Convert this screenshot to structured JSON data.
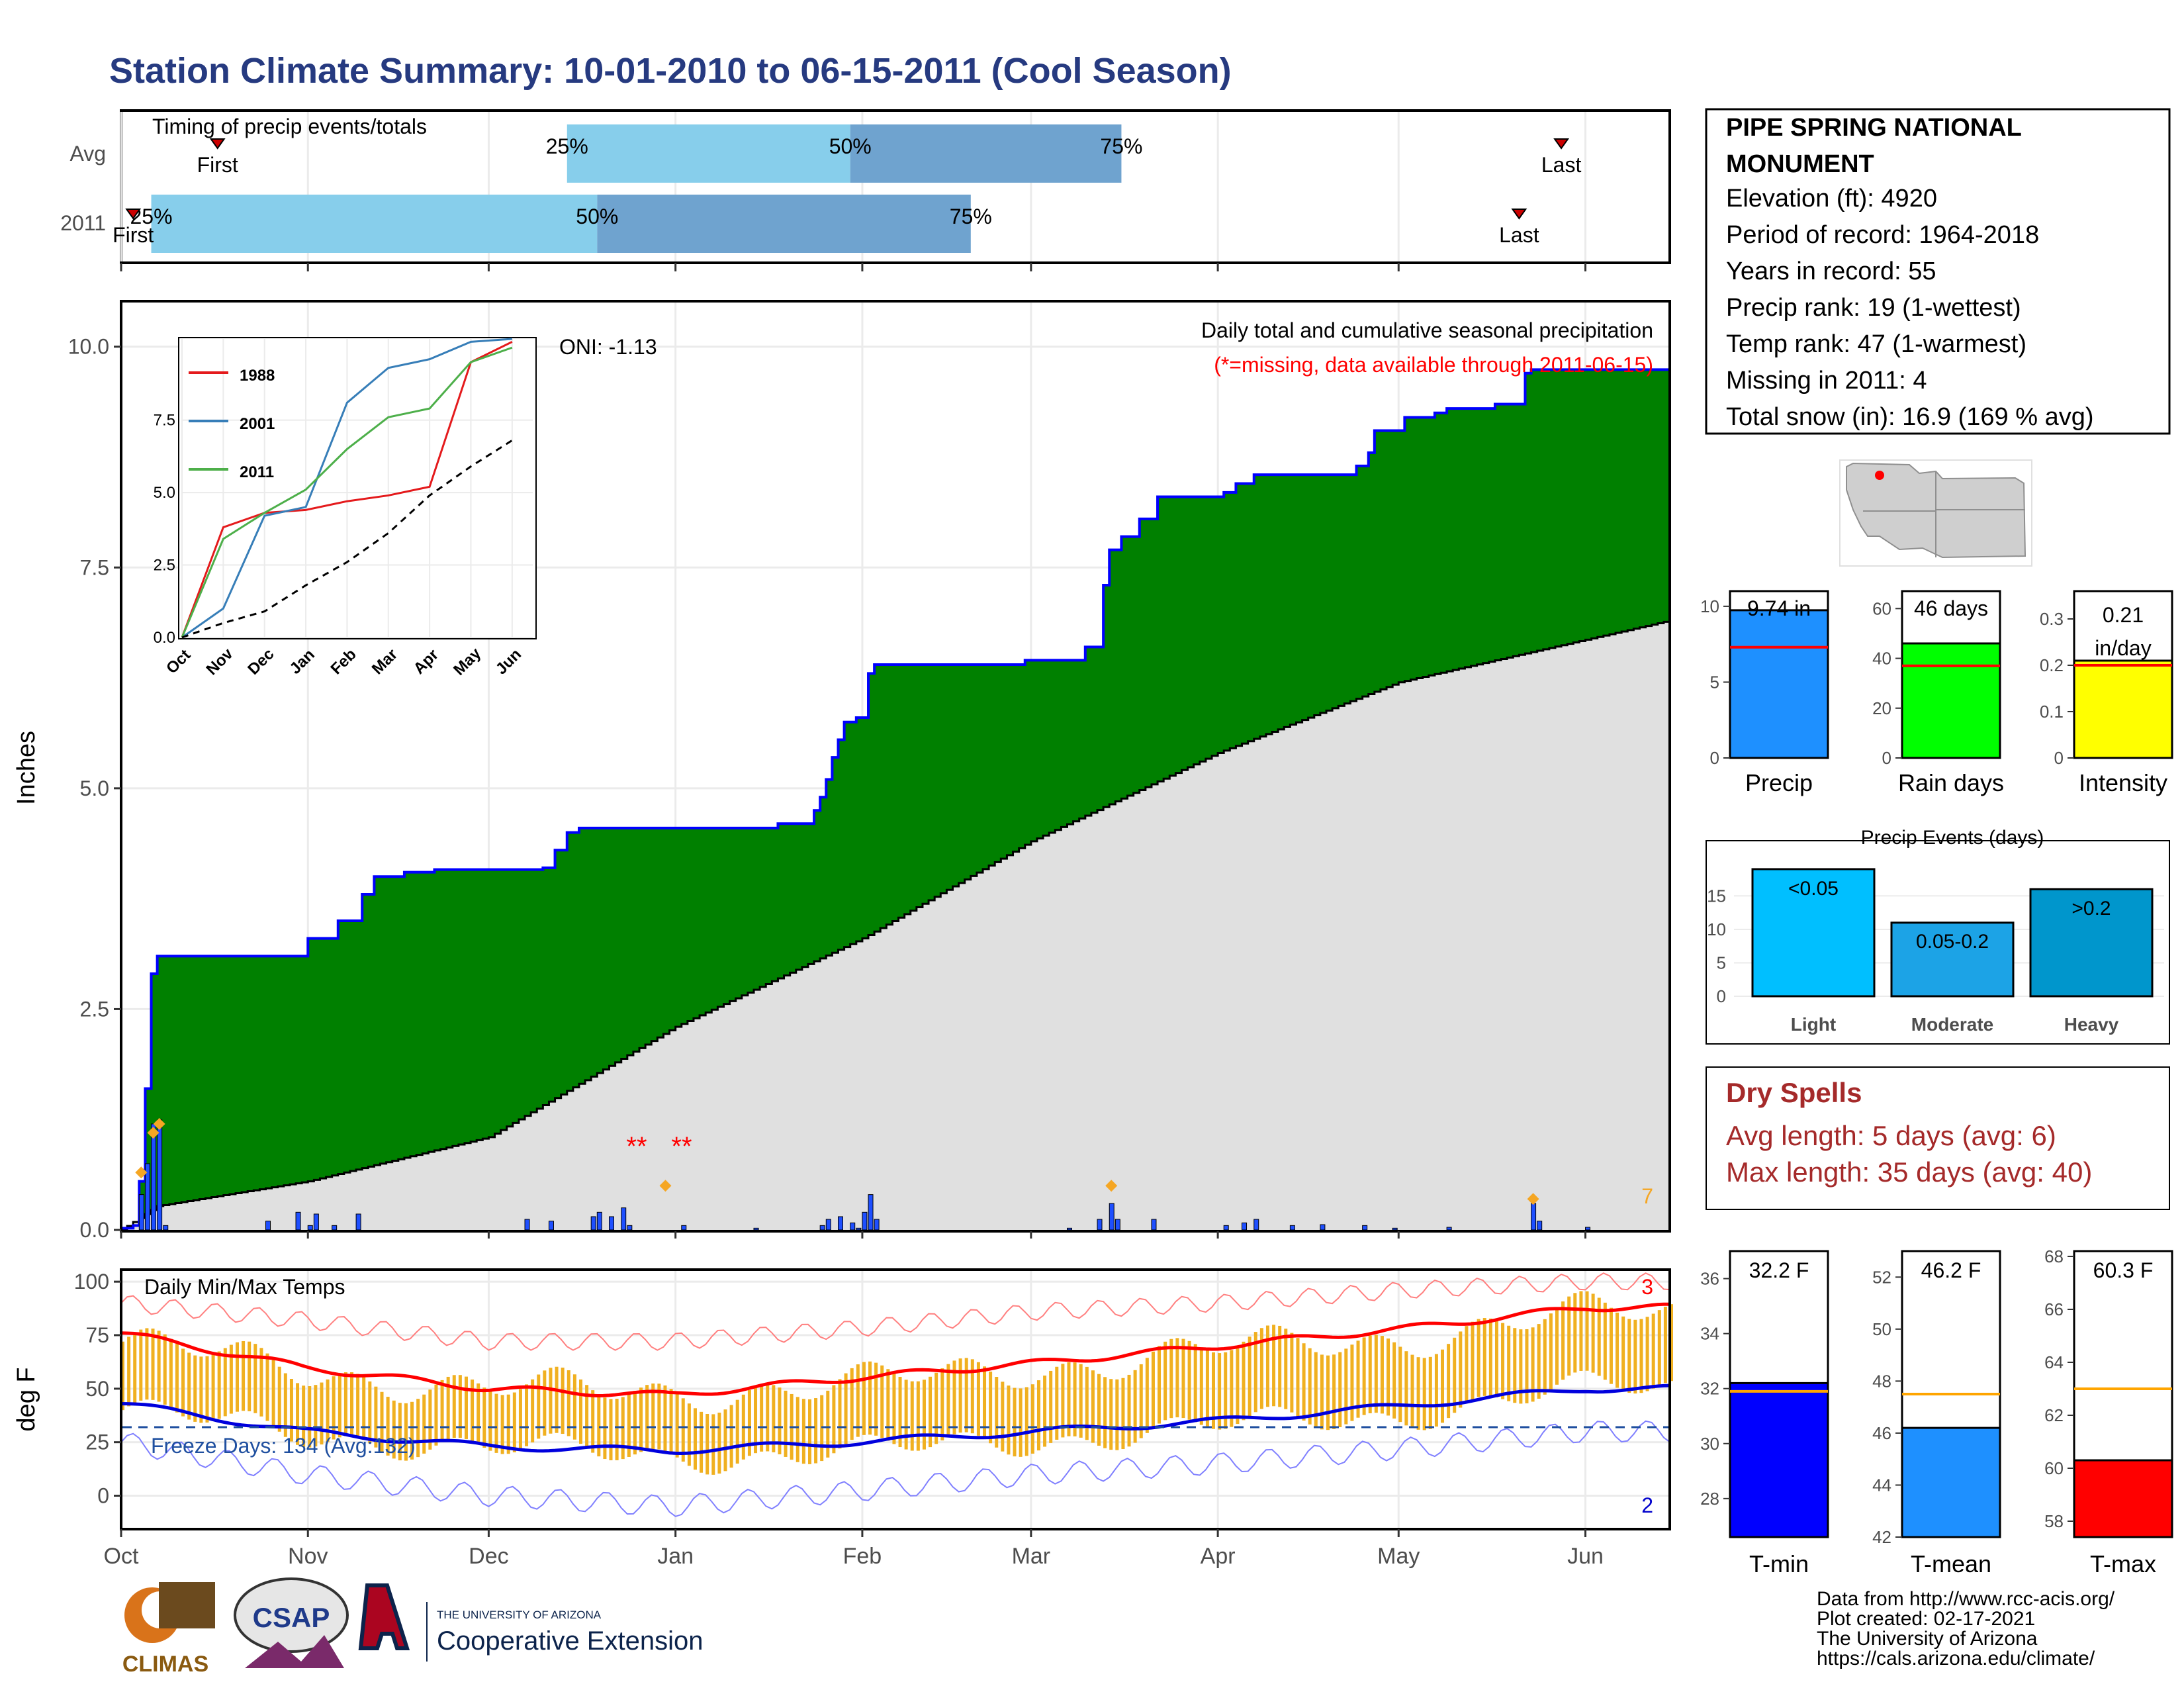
{
  "title": "Station Climate Summary: 10-01-2010 to 06-15-2011 (Cool Season)",
  "timing": {
    "label": "Timing of precip events/totals",
    "rows": [
      {
        "name": "Avg",
        "p25_date": "2010-12-14",
        "p50_date": "2011-01-30",
        "p75_date": "2011-03-16",
        "first_date": "2010-10-17",
        "last_date": "2011-05-28",
        "first_label": "First",
        "last_label": "Last"
      },
      {
        "name": "2011",
        "p25_date": "2010-10-06",
        "p50_date": "2010-12-19",
        "p75_date": "2011-02-19",
        "first_date": "2010-10-03",
        "last_date": "2011-05-21",
        "first_label": "First",
        "last_label": "Last"
      }
    ],
    "pct_labels": [
      "25%",
      "50%",
      "75%"
    ]
  },
  "station": {
    "name_line1": "PIPE SPRING NATIONAL",
    "name_line2": "MONUMENT",
    "elevation": "Elevation (ft): 4920",
    "period": "Period of record: 1964-2018",
    "years": "Years in record: 55",
    "precip_rank": "Precip rank: 19 (1-wettest)",
    "temp_rank": "Temp rank: 47 (1-warmest)",
    "missing": "Missing in 2011: 4",
    "snow": "Total snow (in): 16.9 (169 % avg)"
  },
  "precip_panel": {
    "title": "Daily total and cumulative seasonal precipitation",
    "missing_note": "(*=missing, data available through 2011-06-15)",
    "oni": "ONI: -1.13",
    "ylabel": "Inches",
    "count_label": "7",
    "missing_markers": "**"
  },
  "inset": {
    "legend": [
      "1988",
      "2001",
      "2011"
    ],
    "colors": [
      "#e41a1c",
      "#377eb8",
      "#4daf4a"
    ],
    "months": [
      "Oct",
      "Nov",
      "Dec",
      "Jan",
      "Feb",
      "Mar",
      "Apr",
      "May",
      "Jun"
    ],
    "yticks": [
      "0.0",
      "2.5",
      "5.0",
      "7.5"
    ]
  },
  "temp_panel": {
    "title": "Daily Min/Max Temps",
    "freeze": "Freeze Days: 134 (Avg:132)",
    "ylabel": "deg F",
    "count_high": "3",
    "count_low": "2",
    "yticks": [
      "0",
      "25",
      "50",
      "75",
      "100"
    ]
  },
  "x_months": [
    "Oct",
    "Nov",
    "Dec",
    "Jan",
    "Feb",
    "Mar",
    "Apr",
    "May",
    "Jun"
  ],
  "totals": [
    {
      "label": "Precip",
      "value_label": "9.74 in",
      "color": "#1e90ff"
    },
    {
      "label": "Rain days",
      "value_label": "46 days",
      "color": "#00ff00"
    },
    {
      "label": "Intensity",
      "value_label_line1": "0.21",
      "value_label_line2": "in/day",
      "color": "#ffff00"
    }
  ],
  "events": {
    "title": "Precip Events (days)",
    "categories": [
      "Light",
      "Moderate",
      "Heavy"
    ],
    "bar_labels": [
      "<0.05",
      "0.05-0.2",
      ">0.2"
    ],
    "colors": [
      "#00bfff",
      "#1ca3e6",
      "#0096cc"
    ]
  },
  "dry_spells": {
    "title": "Dry Spells",
    "avg": "Avg length: 5 days (avg: 6)",
    "max": "Max length: 35 days (avg: 40)"
  },
  "temp_bars": [
    {
      "label": "T-min",
      "value_label": "32.2 F",
      "color": "#0000ff"
    },
    {
      "label": "T-mean",
      "value_label": "46.2 F",
      "color": "#1e90ff"
    },
    {
      "label": "T-max",
      "value_label": "60.3 F",
      "color": "#ff0000"
    }
  ],
  "footer": {
    "line1": "Data from http://www.rcc-acis.org/",
    "line2": "Plot created: 02-17-2021",
    "line3": "The University of Arizona",
    "line4": "https://cals.arizona.edu/climate/",
    "logo1": "CLIMAS",
    "logo2": "CSAP",
    "logo3_small": "THE UNIVERSITY OF ARIZONA",
    "logo3_big": "Cooperative Extension"
  },
  "chart_data": [
    {
      "type": "area",
      "title": "Daily total and cumulative seasonal precipitation",
      "ylabel": "Inches",
      "ylim": [
        0,
        10.5
      ],
      "yticks": [
        0,
        2.5,
        5.0,
        7.5,
        10.0
      ],
      "x_start": "2010-10-01",
      "x_end": "2011-06-15",
      "series": [
        {
          "name": "2011",
          "cumulative_steps": [
            [
              "2010-10-01",
              0.02
            ],
            [
              "2010-10-03",
              0.05
            ],
            [
              "2010-10-04",
              0.55
            ],
            [
              "2010-10-05",
              1.6
            ],
            [
              "2010-10-06",
              2.9
            ],
            [
              "2010-10-07",
              3.1
            ],
            [
              "2010-11-01",
              3.3
            ],
            [
              "2010-11-06",
              3.5
            ],
            [
              "2010-11-10",
              3.8
            ],
            [
              "2010-11-12",
              4.0
            ],
            [
              "2010-11-17",
              4.05
            ],
            [
              "2010-11-22",
              4.08
            ],
            [
              "2010-12-10",
              4.1
            ],
            [
              "2010-12-12",
              4.3
            ],
            [
              "2010-12-14",
              4.5
            ],
            [
              "2010-12-16",
              4.55
            ],
            [
              "2011-01-18",
              4.6
            ],
            [
              "2011-01-24",
              4.75
            ],
            [
              "2011-01-25",
              4.9
            ],
            [
              "2011-01-26",
              5.1
            ],
            [
              "2011-01-27",
              5.35
            ],
            [
              "2011-01-28",
              5.55
            ],
            [
              "2011-01-29",
              5.75
            ],
            [
              "2011-01-31",
              5.8
            ],
            [
              "2011-02-02",
              6.3
            ],
            [
              "2011-02-03",
              6.4
            ],
            [
              "2011-02-28",
              6.45
            ],
            [
              "2011-03-10",
              6.6
            ],
            [
              "2011-03-13",
              7.3
            ],
            [
              "2011-03-14",
              7.7
            ],
            [
              "2011-03-16",
              7.85
            ],
            [
              "2011-03-19",
              8.05
            ],
            [
              "2011-03-22",
              8.3
            ],
            [
              "2011-04-02",
              8.35
            ],
            [
              "2011-04-04",
              8.45
            ],
            [
              "2011-04-07",
              8.55
            ],
            [
              "2011-04-24",
              8.65
            ],
            [
              "2011-04-26",
              8.8
            ],
            [
              "2011-04-27",
              9.05
            ],
            [
              "2011-05-02",
              9.2
            ],
            [
              "2011-05-07",
              9.25
            ],
            [
              "2011-05-09",
              9.3
            ],
            [
              "2011-05-17",
              9.35
            ],
            [
              "2011-05-22",
              9.7
            ],
            [
              "2011-05-23",
              9.74
            ],
            [
              "2011-06-15",
              9.74
            ]
          ]
        },
        {
          "name": "Avg cumulative",
          "values_monthly": {
            "2010-10-01": 0.0,
            "2010-10-07": 0.27,
            "2010-11-01": 0.55,
            "2010-12-01": 1.05,
            "2011-01-01": 2.3,
            "2011-02-01": 3.3,
            "2011-03-01": 4.4,
            "2011-04-01": 5.4,
            "2011-05-01": 6.2,
            "2011-06-15": 6.9
          }
        }
      ],
      "daily_bars": [
        [
          "2010-10-04",
          0.4
        ],
        [
          "2010-10-05",
          0.75
        ],
        [
          "2010-10-06",
          1.2
        ],
        [
          "2010-10-07",
          1.25
        ],
        [
          "2010-10-08",
          0.05
        ],
        [
          "2010-10-25",
          0.1
        ],
        [
          "2010-10-30",
          0.2
        ],
        [
          "2010-11-01",
          0.05
        ],
        [
          "2010-11-02",
          0.18
        ],
        [
          "2010-11-05",
          0.05
        ],
        [
          "2010-11-09",
          0.18
        ],
        [
          "2010-12-07",
          0.12
        ],
        [
          "2010-12-11",
          0.1
        ],
        [
          "2010-12-18",
          0.15
        ],
        [
          "2010-12-19",
          0.2
        ],
        [
          "2010-12-21",
          0.15
        ],
        [
          "2010-12-23",
          0.25
        ],
        [
          "2010-12-24",
          0.05
        ],
        [
          "2011-01-02",
          0.05
        ],
        [
          "2011-01-14",
          0.02
        ],
        [
          "2011-01-25",
          0.05
        ],
        [
          "2011-01-26",
          0.12
        ],
        [
          "2011-01-28",
          0.15
        ],
        [
          "2011-01-30",
          0.08
        ],
        [
          "2011-01-31",
          0.02
        ],
        [
          "2011-02-01",
          0.2
        ],
        [
          "2011-02-02",
          0.4
        ],
        [
          "2011-02-03",
          0.12
        ],
        [
          "2011-03-07",
          0.02
        ],
        [
          "2011-03-12",
          0.12
        ],
        [
          "2011-03-14",
          0.3
        ],
        [
          "2011-03-15",
          0.12
        ],
        [
          "2011-03-21",
          0.12
        ],
        [
          "2011-04-02",
          0.05
        ],
        [
          "2011-04-05",
          0.08
        ],
        [
          "2011-04-07",
          0.12
        ],
        [
          "2011-04-13",
          0.05
        ],
        [
          "2011-04-18",
          0.06
        ],
        [
          "2011-04-25",
          0.05
        ],
        [
          "2011-04-30",
          0.02
        ],
        [
          "2011-05-09",
          0.03
        ],
        [
          "2011-05-23",
          0.3
        ],
        [
          "2011-05-24",
          0.1
        ],
        [
          "2011-06-01",
          0.03
        ]
      ],
      "missing_dates": [
        "2010-12-24",
        "2010-12-25",
        "2010-12-31",
        "2011-01-01"
      ]
    },
    {
      "type": "line",
      "title": "",
      "x": [
        "Oct",
        "Nov",
        "Dec",
        "Jan",
        "Feb",
        "Mar",
        "Apr",
        "May",
        "Jun"
      ],
      "ylim": [
        0,
        10.3
      ],
      "yticks": [
        0.0,
        2.5,
        5.0,
        7.5
      ],
      "series": [
        {
          "name": "1988",
          "values": [
            0.0,
            3.8,
            4.3,
            4.4,
            4.7,
            4.9,
            5.2,
            9.5,
            10.2
          ]
        },
        {
          "name": "2001",
          "values": [
            0.0,
            1.0,
            4.2,
            4.5,
            8.1,
            9.3,
            9.6,
            10.2,
            10.3
          ]
        },
        {
          "name": "2011",
          "values": [
            0.0,
            3.4,
            4.3,
            5.1,
            6.5,
            7.6,
            7.9,
            9.5,
            10.0
          ]
        },
        {
          "name": "",
          "values": [
            0.0,
            0.5,
            0.9,
            1.8,
            2.6,
            3.6,
            4.9,
            5.9,
            6.8
          ]
        }
      ]
    },
    {
      "type": "bar",
      "title": "Daily Min/Max Temps",
      "ylabel": "deg F",
      "ylim": [
        -15,
        105
      ],
      "yticks": [
        0,
        25,
        50,
        75,
        100
      ],
      "freeze_line": 32,
      "monthly": {
        "months": [
          "Oct",
          "Nov",
          "Dec",
          "Jan",
          "Feb",
          "Mar",
          "Apr",
          "May",
          "Jun"
        ],
        "tmax": [
          72,
          58,
          50,
          48,
          52,
          60,
          68,
          74,
          85
        ],
        "tmin": [
          40,
          28,
          22,
          18,
          20,
          26,
          32,
          38,
          50
        ],
        "avg_max": [
          76,
          60,
          50,
          47,
          55,
          62,
          70,
          78,
          88
        ],
        "avg_min": [
          43,
          30,
          23,
          21,
          25,
          30,
          35,
          42,
          50
        ],
        "record_high": [
          90,
          82,
          72,
          72,
          78,
          86,
          90,
          96,
          100
        ],
        "record_low": [
          25,
          10,
          0,
          -5,
          2,
          10,
          15,
          22,
          30
        ]
      }
    },
    {
      "type": "bar",
      "title": "",
      "categories": [
        "Precip",
        "Rain days",
        "Intensity"
      ],
      "values": [
        9.74,
        46,
        0.21
      ],
      "avg_values": [
        7.3,
        37,
        0.2
      ],
      "ylims": [
        [
          0,
          11
        ],
        [
          0,
          67
        ],
        [
          0,
          0.36
        ]
      ],
      "yticks": [
        [
          0,
          5,
          10
        ],
        [
          0,
          20,
          40,
          60
        ],
        [
          0.0,
          0.1,
          0.2,
          0.3
        ]
      ]
    },
    {
      "type": "bar",
      "title": "Precip Events (days)",
      "categories": [
        "Light",
        "Moderate",
        "Heavy"
      ],
      "values": [
        19,
        11,
        16
      ],
      "ylim": [
        0,
        19
      ],
      "yticks": [
        0,
        5,
        10,
        15
      ]
    },
    {
      "type": "bar",
      "title": "",
      "categories": [
        "T-min",
        "T-mean",
        "T-max"
      ],
      "values": [
        32.2,
        46.2,
        60.3
      ],
      "avg_values": [
        31.9,
        47.5,
        63.0
      ],
      "ylims": [
        [
          26.6,
          37.0
        ],
        [
          42,
          53
        ],
        [
          57.4,
          68.2
        ]
      ],
      "yticks": [
        [
          28,
          30,
          32,
          34,
          36
        ],
        [
          42,
          44,
          46,
          48,
          50,
          52
        ],
        [
          58,
          60,
          62,
          64,
          66,
          68
        ]
      ]
    }
  ]
}
